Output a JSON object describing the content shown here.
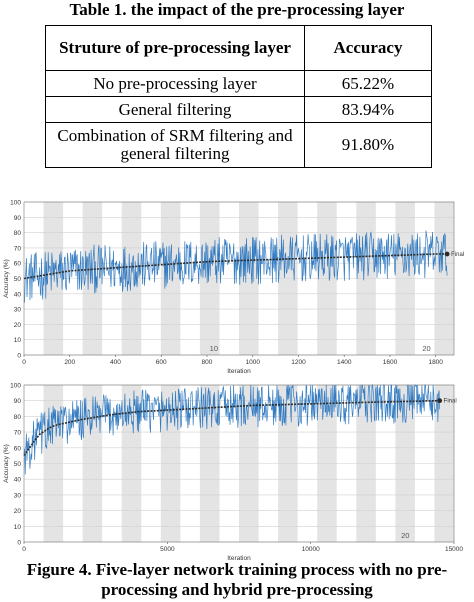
{
  "table": {
    "caption": "Table 1. the impact of the pre-processing layer",
    "headers": [
      "Struture of pre-processing layer",
      "Accuracy"
    ],
    "rows": [
      [
        "No pre-processing layer",
        "65.22%"
      ],
      [
        "General filtering",
        "83.94%"
      ],
      [
        "Combination of SRM filtering and general filtering",
        "91.80%"
      ]
    ]
  },
  "figure": {
    "caption": "Figure 4. Five-layer network training process with no pre-processing and hybrid pre-processing"
  },
  "chart_data": [
    {
      "type": "line",
      "title": "",
      "xlabel": "Iteration",
      "ylabel": "Accuracy (%)",
      "xlim": [
        0,
        1880
      ],
      "ylim": [
        0,
        100
      ],
      "x_ticks": [
        0,
        200,
        400,
        600,
        800,
        1000,
        1200,
        1400,
        1600,
        1800
      ],
      "y_ticks": [
        0,
        10,
        20,
        30,
        40,
        50,
        60,
        70,
        80,
        90,
        100
      ],
      "epoch_labels": [
        {
          "label": "10",
          "x": 830
        },
        {
          "label": "20",
          "x": 1760
        }
      ],
      "final_label": "Final",
      "final_value": 66,
      "grid": true,
      "series": [
        {
          "x": [
            0,
            200,
            400,
            600,
            800,
            1000,
            1200,
            1400,
            1600,
            1800,
            1850
          ],
          "values": [
            50,
            55,
            57,
            59,
            61,
            62,
            63,
            64,
            65,
            66,
            66
          ]
        }
      ]
    },
    {
      "type": "line",
      "title": "",
      "xlabel": "Iteration",
      "ylabel": "Accuracy (%)",
      "xlim": [
        0,
        15000
      ],
      "ylim": [
        0,
        100
      ],
      "x_ticks": [
        0,
        5000,
        10000,
        15000
      ],
      "y_ticks": [
        0,
        10,
        20,
        30,
        40,
        50,
        60,
        70,
        80,
        90,
        100
      ],
      "epoch_labels": [
        {
          "label": "20",
          "x": 13300
        }
      ],
      "final_label": "Final",
      "final_value": 90,
      "grid": true,
      "series": [
        {
          "x": [
            0,
            500,
            1000,
            2000,
            3000,
            4000,
            6000,
            8000,
            10000,
            12000,
            14500
          ],
          "values": [
            55,
            68,
            74,
            78,
            81,
            83,
            85,
            87,
            88,
            89,
            90
          ]
        }
      ]
    }
  ]
}
